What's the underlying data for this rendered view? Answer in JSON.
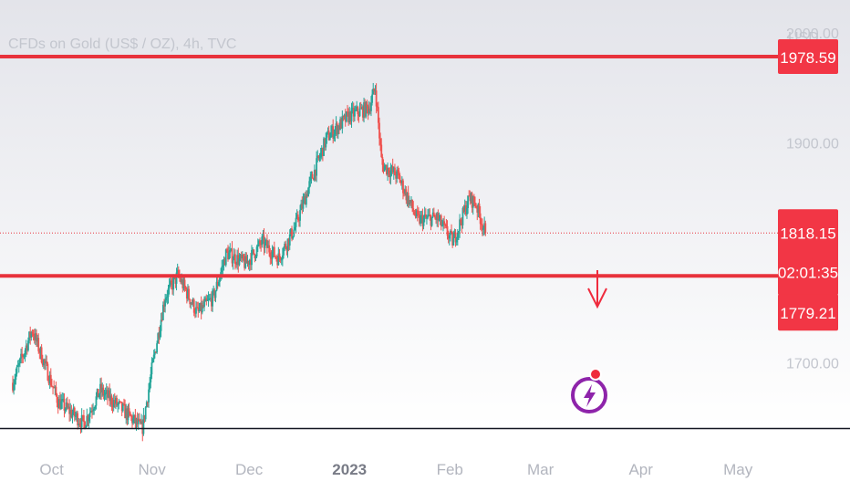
{
  "chart_data": {
    "type": "candlestick",
    "title": "CFDs on Gold (US$ / OZ), 4h, TVC",
    "currency": "USD",
    "ylim": [
      1640,
      2030
    ],
    "y_ticks": [
      {
        "value": 2000,
        "label": "2000.00"
      },
      {
        "value": 1900,
        "label": "1900.00"
      },
      {
        "value": 1700,
        "label": "1700.00"
      }
    ],
    "x_ticks": [
      {
        "label": "Oct",
        "bold": false
      },
      {
        "label": "Nov",
        "bold": false
      },
      {
        "label": "Dec",
        "bold": false
      },
      {
        "label": "2023",
        "bold": true
      },
      {
        "label": "Feb",
        "bold": false
      },
      {
        "label": "Mar",
        "bold": false
      },
      {
        "label": "Apr",
        "bold": false
      },
      {
        "label": "May",
        "bold": false
      }
    ],
    "anchor_points": [
      {
        "day": 0,
        "price": 1682
      },
      {
        "day": 6,
        "price": 1730
      },
      {
        "day": 14,
        "price": 1665
      },
      {
        "day": 22,
        "price": 1645
      },
      {
        "day": 27,
        "price": 1675
      },
      {
        "day": 33,
        "price": 1660
      },
      {
        "day": 40,
        "price": 1640
      },
      {
        "day": 43,
        "price": 1695
      },
      {
        "day": 47,
        "price": 1760
      },
      {
        "day": 51,
        "price": 1780
      },
      {
        "day": 57,
        "price": 1745
      },
      {
        "day": 62,
        "price": 1760
      },
      {
        "day": 66,
        "price": 1800
      },
      {
        "day": 72,
        "price": 1790
      },
      {
        "day": 77,
        "price": 1810
      },
      {
        "day": 82,
        "price": 1795
      },
      {
        "day": 87,
        "price": 1822
      },
      {
        "day": 92,
        "price": 1865
      },
      {
        "day": 97,
        "price": 1905
      },
      {
        "day": 104,
        "price": 1925
      },
      {
        "day": 110,
        "price": 1932
      },
      {
        "day": 112,
        "price": 1950
      },
      {
        "day": 114,
        "price": 1880
      },
      {
        "day": 119,
        "price": 1870
      },
      {
        "day": 125,
        "price": 1830
      },
      {
        "day": 131,
        "price": 1832
      },
      {
        "day": 136,
        "price": 1810
      },
      {
        "day": 141,
        "price": 1850
      },
      {
        "day": 143,
        "price": 1845
      },
      {
        "day": 146,
        "price": 1818
      }
    ],
    "horizontal_levels": [
      {
        "name": "resistance",
        "value": 1978.59,
        "label": "1978.59"
      },
      {
        "name": "support",
        "value": 1779.21,
        "label": "1779.21"
      }
    ],
    "current_price": {
      "value": 1818.15,
      "label": "1818.15",
      "countdown": "02:01:35"
    },
    "annotation": "down-arrow",
    "colors": {
      "up": "#26a69a",
      "down": "#ef5350",
      "level_line": "#e8323c",
      "label_bg": "#f23645",
      "axis_text": "#c3c6ce",
      "logo": "#8e24aa"
    }
  }
}
